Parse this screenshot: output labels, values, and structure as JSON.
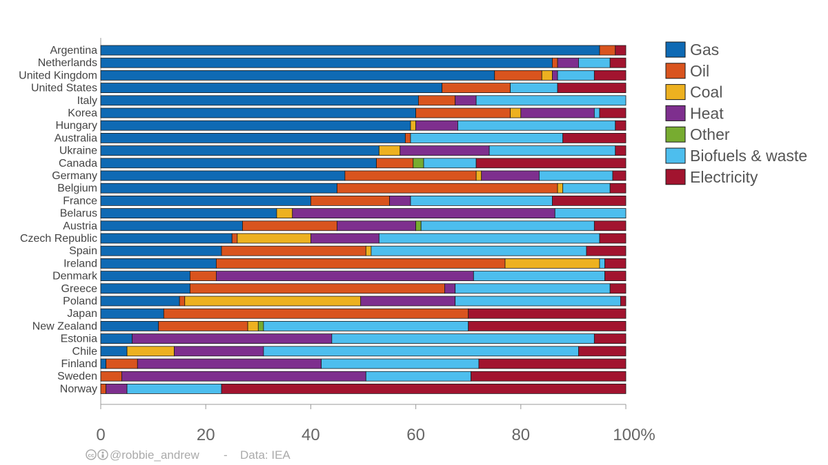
{
  "chart_data": {
    "type": "bar",
    "orientation": "horizontal",
    "stacked": true,
    "title": "",
    "xlabel": "",
    "ylabel": "",
    "xlim": [
      0,
      100
    ],
    "x_ticks": [
      "0",
      "20",
      "40",
      "60",
      "80",
      "100%"
    ],
    "grid": false,
    "legend_position": "right",
    "categories": [
      "Argentina",
      "Netherlands",
      "United Kingdom",
      "United States",
      "Italy",
      "Korea",
      "Hungary",
      "Australia",
      "Ukraine",
      "Canada",
      "Germany",
      "Belgium",
      "France",
      "Belarus",
      "Austria",
      "Czech Republic",
      "Spain",
      "Ireland",
      "Denmark",
      "Greece",
      "Poland",
      "Japan",
      "New Zealand",
      "Estonia",
      "Chile",
      "Finland",
      "Sweden",
      "Norway"
    ],
    "series": [
      {
        "name": "Gas",
        "color": "#0f6ab4",
        "values": [
          95,
          86,
          75,
          65,
          60.5,
          60,
          59,
          58,
          53,
          52.5,
          46.5,
          45,
          40,
          33.5,
          27,
          25,
          23,
          22,
          17,
          17,
          15,
          12,
          11,
          6,
          5,
          1,
          0,
          0
        ]
      },
      {
        "name": "Oil",
        "color": "#d9541e",
        "values": [
          3,
          1,
          9,
          13,
          7,
          18,
          0,
          1,
          0,
          7,
          25,
          42,
          15,
          0,
          18,
          1,
          27.5,
          55,
          5,
          48.5,
          1,
          58,
          17,
          0,
          0,
          6,
          4,
          1
        ]
      },
      {
        "name": "Coal",
        "color": "#edb120",
        "values": [
          0,
          0,
          2,
          0,
          0,
          2,
          1,
          0,
          4,
          0,
          1,
          1,
          0,
          3,
          0,
          14,
          1,
          18,
          0,
          0,
          33.5,
          0,
          2,
          0,
          9,
          0,
          0,
          0
        ]
      },
      {
        "name": "Heat",
        "color": "#7e2f8e",
        "values": [
          0,
          4,
          1,
          0,
          4,
          14,
          8,
          0,
          17,
          0,
          11,
          0,
          4,
          50,
          15,
          13,
          0,
          0,
          49,
          2,
          18,
          0,
          0,
          38,
          17,
          35,
          46.5,
          4
        ]
      },
      {
        "name": "Other",
        "color": "#77ac30",
        "values": [
          0,
          0,
          0,
          0,
          0,
          0,
          0,
          0,
          0,
          2,
          0,
          0,
          0,
          0,
          1,
          0,
          0,
          0,
          0,
          0,
          0,
          0,
          1,
          0,
          0,
          0,
          0,
          0
        ]
      },
      {
        "name": "Biofuels & waste",
        "color": "#4dbeee",
        "values": [
          0,
          6,
          7,
          9,
          28.5,
          1,
          30,
          29,
          24,
          10,
          14,
          9,
          27,
          14,
          33,
          42,
          41,
          1,
          25,
          29.5,
          31.5,
          0,
          39,
          50,
          60,
          30,
          20,
          18
        ]
      },
      {
        "name": "Electricity",
        "color": "#a2142f",
        "values": [
          2,
          3,
          6,
          13,
          0,
          5,
          2,
          12,
          2,
          28.5,
          2.5,
          3,
          14,
          0,
          6,
          5,
          7.5,
          4,
          4,
          3,
          1,
          30,
          30,
          6,
          9,
          28,
          29.5,
          77
        ]
      }
    ]
  },
  "credit": {
    "icons": [
      "cc-icon",
      "by-icon"
    ],
    "handle": "@robbie_andrew",
    "separator": "-",
    "source": "Data: IEA"
  }
}
